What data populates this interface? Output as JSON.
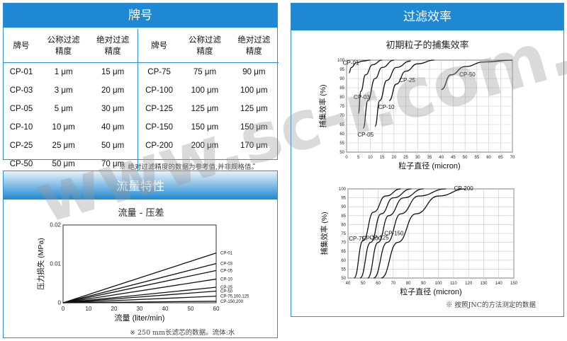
{
  "brand": {
    "title": "牌号",
    "headers": [
      "牌号",
      "公称过滤\n精度",
      "绝对过滤\n精度",
      "牌号",
      "公称过滤\n精度",
      "绝对过滤\n精度"
    ],
    "rows": [
      [
        "CP-01",
        "1 μm",
        "15 μm",
        "CP-75",
        "75 μm",
        "90 μm"
      ],
      [
        "CP-03",
        "3 μm",
        "20 μm",
        "CP-100",
        "100 μm",
        "100 μm"
      ],
      [
        "CP-05",
        "5 μm",
        "30 μm",
        "CP-125",
        "125 μm",
        "125 μm"
      ],
      [
        "CP-10",
        "10 μm",
        "40 μm",
        "CP-150",
        "150 μm",
        "150 μm"
      ],
      [
        "CP-25",
        "25 μm",
        "50 μm",
        "CP-200",
        "200 μm",
        "170 μm"
      ],
      [
        "CP-50",
        "50 μm",
        "70 μm",
        "-",
        "-",
        "-"
      ]
    ],
    "note": "※  绝对过滤精度的数据为参考值,并非规格值。"
  },
  "flow": {
    "title": "流量特性",
    "chart_title": "流量 - 压差",
    "note": "※  250 mm长滤芯的数据。流体:水"
  },
  "efficiency": {
    "title": "过滤效率",
    "chart_title": "初期粒子的捕集效率",
    "note": "※  按照JNC的方法测定的数据"
  },
  "watermark": "www.sc-r.com.cn",
  "chart_data": [
    {
      "type": "line",
      "title": "流量 - 压差",
      "xlabel": "流量 (liter/min)",
      "ylabel": "压力损失 (MPa)",
      "xlim": [
        0,
        60
      ],
      "ylim": [
        0,
        0.02
      ],
      "xticks": [
        0,
        10,
        20,
        30,
        40,
        50,
        60
      ],
      "yticks": [
        {
          "v": 0,
          "t": "0"
        },
        {
          "v": 0.01,
          "t": "0.01"
        },
        {
          "v": 0.02,
          "t": "0.02"
        }
      ],
      "series": [
        {
          "name": "CP-01",
          "x": [
            0,
            60
          ],
          "y": [
            0,
            0.0128
          ]
        },
        {
          "name": "CP-03",
          "x": [
            0,
            60
          ],
          "y": [
            0,
            0.0101
          ]
        },
        {
          "name": "CP-05",
          "x": [
            0,
            60
          ],
          "y": [
            0,
            0.0083
          ]
        },
        {
          "name": "CP-10",
          "x": [
            0,
            60
          ],
          "y": [
            0,
            0.0061
          ]
        },
        {
          "name": "CP-25",
          "x": [
            0,
            60
          ],
          "y": [
            0,
            0.004
          ]
        },
        {
          "name": "CP-50",
          "x": [
            0,
            60
          ],
          "y": [
            0,
            0.003
          ]
        },
        {
          "name": "CP-75,100,125",
          "x": [
            0,
            60
          ],
          "y": [
            0,
            0.0017
          ]
        },
        {
          "name": "CP-150,200",
          "x": [
            0,
            60
          ],
          "y": [
            0,
            0.0004
          ]
        }
      ],
      "grid": false
    },
    {
      "type": "line",
      "title": "",
      "xlabel": "粒子直径 (micron)",
      "ylabel": "捕集效率 (%)",
      "xlim": [
        0,
        70
      ],
      "ylim": [
        50,
        100
      ],
      "xticks": [
        0,
        5,
        10,
        15,
        20,
        25,
        30,
        35,
        40,
        45,
        50,
        55,
        60,
        65,
        70
      ],
      "yticks": [
        50,
        55,
        60,
        65,
        70,
        75,
        80,
        85,
        90,
        95,
        100
      ],
      "series": [
        {
          "name": "CP-01",
          "x": [
            1,
            2,
            4,
            7,
            10
          ],
          "y": [
            93,
            96,
            98.5,
            99.5,
            100
          ]
        },
        {
          "name": "CP-03",
          "x": [
            5,
            6,
            8,
            11,
            15
          ],
          "y": [
            71,
            83,
            92,
            97.5,
            100
          ]
        },
        {
          "name": "CP-05",
          "x": [
            7,
            9,
            12,
            15,
            20
          ],
          "y": [
            63,
            78,
            90,
            96,
            100
          ]
        },
        {
          "name": "CP-10",
          "x": [
            12,
            14,
            17,
            21,
            27
          ],
          "y": [
            64,
            78,
            89,
            96,
            99.5
          ]
        },
        {
          "name": "CP-25",
          "x": [
            18,
            21,
            25,
            30,
            37
          ],
          "y": [
            78,
            87,
            94,
            98,
            100
          ]
        },
        {
          "name": "CP-50",
          "x": [
            40,
            44,
            50,
            58,
            70
          ],
          "y": [
            84,
            92,
            96.5,
            99,
            100
          ]
        }
      ],
      "grid": true
    },
    {
      "type": "line",
      "title": "",
      "xlabel": "粒子直径 (micron)",
      "ylabel": "捕集效率 (%)",
      "xlim": [
        40,
        150
      ],
      "ylim": [
        50,
        100
      ],
      "xticks": [
        40,
        50,
        60,
        70,
        80,
        90,
        100,
        110,
        120,
        130,
        140,
        150
      ],
      "yticks": [
        50,
        55,
        60,
        65,
        70,
        75,
        80,
        85,
        90,
        95,
        100
      ],
      "series": [
        {
          "name": "CP-75",
          "x": [
            44,
            50,
            57,
            65,
            75
          ],
          "y": [
            50,
            71,
            87,
            96,
            100
          ]
        },
        {
          "name": "CP-100",
          "x": [
            48,
            55,
            62,
            70,
            82
          ],
          "y": [
            50,
            70,
            86,
            95,
            100
          ]
        },
        {
          "name": "CP-125",
          "x": [
            53,
            60,
            67,
            77,
            90
          ],
          "y": [
            50,
            70,
            85,
            95,
            100
          ]
        },
        {
          "name": "CP-150",
          "x": [
            57,
            66,
            75,
            87,
            105
          ],
          "y": [
            50,
            70,
            86,
            96,
            100
          ]
        },
        {
          "name": "CP-200",
          "x": [
            62,
            73,
            85,
            100,
            118
          ],
          "y": [
            50,
            70,
            86,
            96,
            100
          ]
        }
      ],
      "grid": true
    }
  ]
}
